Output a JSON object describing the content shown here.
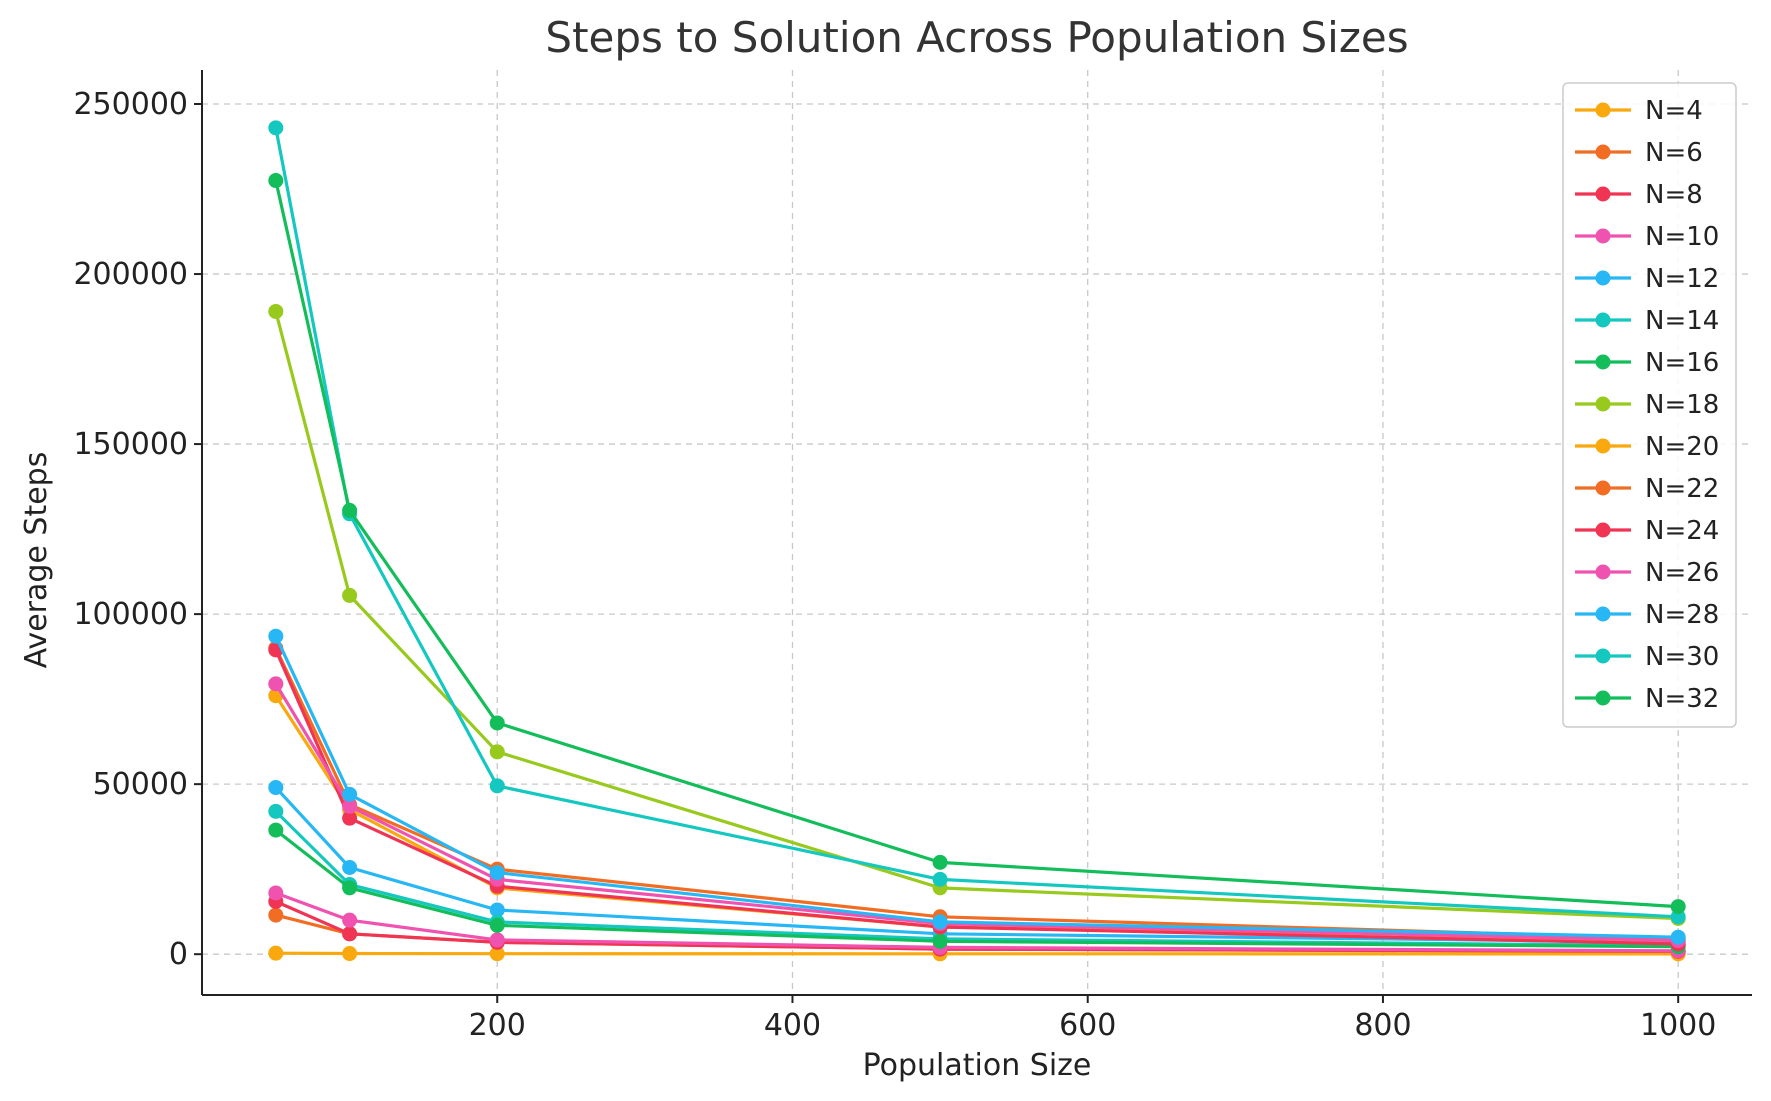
{
  "chart_data": {
    "type": "line",
    "title": "Steps to Solution Across Population Sizes",
    "xlabel": "Population Size",
    "ylabel": "Average Steps",
    "x": [
      50,
      100,
      200,
      500,
      1000
    ],
    "xlim": [
      0,
      1050
    ],
    "ylim": [
      -12000,
      260000
    ],
    "xticks": [
      200,
      400,
      600,
      800,
      1000
    ],
    "yticks": [
      0,
      50000,
      100000,
      150000,
      200000,
      250000
    ],
    "grid": true,
    "legend_position": "upper right",
    "series": [
      {
        "name": "N=4",
        "color": "#f9a80e",
        "values": [
          300,
          200,
          150,
          120,
          100
        ]
      },
      {
        "name": "N=6",
        "color": "#f26d24",
        "values": [
          11500,
          6000,
          3500,
          1500,
          800
        ]
      },
      {
        "name": "N=8",
        "color": "#ef3553",
        "values": [
          15500,
          6000,
          3500,
          1500,
          900
        ]
      },
      {
        "name": "N=10",
        "color": "#f052b0",
        "values": [
          18000,
          10000,
          4200,
          2000,
          1000
        ]
      },
      {
        "name": "N=12",
        "color": "#27b7f4",
        "values": [
          49000,
          25500,
          13000,
          6000,
          3500
        ]
      },
      {
        "name": "N=14",
        "color": "#14c8c0",
        "values": [
          42000,
          20500,
          9500,
          4500,
          2500
        ]
      },
      {
        "name": "N=16",
        "color": "#12bd5a",
        "values": [
          36500,
          19500,
          8500,
          3800,
          2200
        ]
      },
      {
        "name": "N=18",
        "color": "#98c91d",
        "values": [
          189000,
          105500,
          59500,
          19500,
          10500
        ]
      },
      {
        "name": "N=20",
        "color": "#f9a80e",
        "values": [
          76000,
          42500,
          19500,
          8000,
          4000
        ]
      },
      {
        "name": "N=22",
        "color": "#f26d24",
        "values": [
          90000,
          44000,
          25000,
          11000,
          4500
        ]
      },
      {
        "name": "N=24",
        "color": "#ef3553",
        "values": [
          89500,
          40000,
          20000,
          8000,
          3000
        ]
      },
      {
        "name": "N=26",
        "color": "#f052b0",
        "values": [
          79500,
          43500,
          22000,
          9000,
          4000
        ]
      },
      {
        "name": "N=28",
        "color": "#27b7f4",
        "values": [
          93500,
          47000,
          24000,
          9500,
          5000
        ]
      },
      {
        "name": "N=30",
        "color": "#14c8c0",
        "values": [
          243000,
          129500,
          49500,
          22000,
          11000
        ]
      },
      {
        "name": "N=32",
        "color": "#12bd5a",
        "values": [
          227500,
          130500,
          68000,
          27000,
          14000
        ]
      }
    ]
  }
}
